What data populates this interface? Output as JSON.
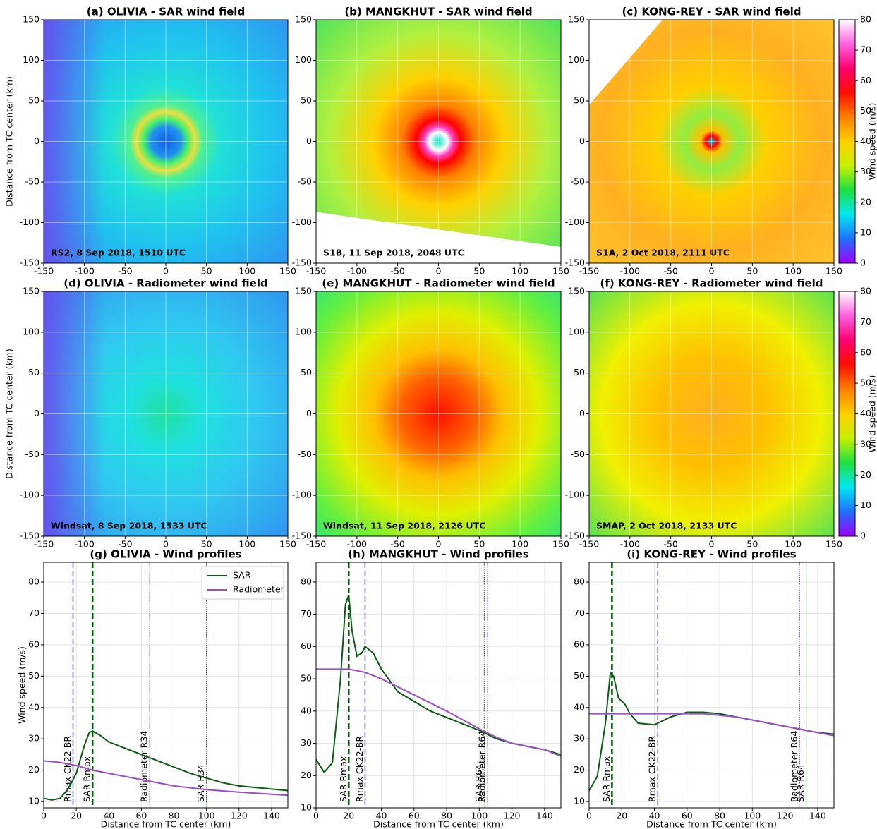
{
  "chart_data": [
    {
      "type": "heatmap",
      "title": "(a) OLIVIA - SAR wind field",
      "annotation": "RS2, 8 Sep 2018, 1510 UTC",
      "annotation_color": "#ffffff",
      "ylabel": "Distance from TC center (km)",
      "xlim": [
        -150,
        150
      ],
      "ylim": [
        -150,
        150
      ],
      "xticks": [
        -150,
        -100,
        -50,
        0,
        50,
        100,
        150
      ],
      "yticks": [
        -150,
        -100,
        -50,
        0,
        50,
        100,
        150
      ],
      "grid": true
    },
    {
      "type": "heatmap",
      "title": "(b) MANGKHUT - SAR wind field",
      "annotation": "S1B, 11 Sep 2018, 2048 UTC",
      "annotation_color": "#000000",
      "xlim": [
        -150,
        150
      ],
      "ylim": [
        -150,
        150
      ],
      "xticks": [
        -150,
        -100,
        -50,
        0,
        50,
        100,
        150
      ],
      "yticks": [
        -150,
        -100,
        -50,
        0,
        50,
        100,
        150
      ],
      "grid": true
    },
    {
      "type": "heatmap",
      "title": "(c) KONG-REY - SAR wind field",
      "annotation": "S1A, 2 Oct 2018, 2111 UTC",
      "annotation_color": "#000000",
      "xlim": [
        -150,
        150
      ],
      "ylim": [
        -150,
        150
      ],
      "xticks": [
        -150,
        -100,
        -50,
        0,
        50,
        100,
        150
      ],
      "yticks": [
        -150,
        -100,
        -50,
        0,
        50,
        100,
        150
      ],
      "grid": true,
      "colorbar": {
        "label": "Wind speed (m/s)",
        "lim": [
          0,
          80
        ],
        "ticks": [
          0,
          10,
          20,
          30,
          40,
          50,
          60,
          70,
          80
        ],
        "colors": [
          "#a000ff",
          "#1f70ff",
          "#00e8f0",
          "#20e040",
          "#c8f000",
          "#ffd000",
          "#ff8000",
          "#ff1000",
          "#ff0070",
          "#ff60e0",
          "#ffffff"
        ]
      }
    },
    {
      "type": "heatmap",
      "title": "(d) OLIVIA - Radiometer wind field",
      "annotation": "Windsat, 8 Sep 2018, 1533 UTC",
      "annotation_color": "#ffffff",
      "ylabel": "Distance from TC center (km)",
      "xlim": [
        -150,
        150
      ],
      "ylim": [
        -150,
        150
      ],
      "xticks": [
        -150,
        -100,
        -50,
        0,
        50,
        100,
        150
      ],
      "yticks": [
        -150,
        -100,
        -50,
        0,
        50,
        100,
        150
      ],
      "grid": true
    },
    {
      "type": "heatmap",
      "title": "(e) MANGKHUT - Radiometer wind field",
      "annotation": "Windsat, 11 Sep 2018, 2126 UTC",
      "annotation_color": "#000000",
      "xlim": [
        -150,
        150
      ],
      "ylim": [
        -150,
        150
      ],
      "xticks": [
        -150,
        -100,
        -50,
        0,
        50,
        100,
        150
      ],
      "yticks": [
        -150,
        -100,
        -50,
        0,
        50,
        100,
        150
      ],
      "grid": true
    },
    {
      "type": "heatmap",
      "title": "(f) KONG-REY - Radiometer wind field",
      "annotation": "SMAP, 2 Oct 2018, 2133 UTC",
      "annotation_color": "#000000",
      "xlim": [
        -150,
        150
      ],
      "ylim": [
        -150,
        150
      ],
      "xticks": [
        -150,
        -100,
        -50,
        0,
        50,
        100,
        150
      ],
      "yticks": [
        -150,
        -100,
        -50,
        0,
        50,
        100,
        150
      ],
      "grid": true,
      "colorbar": {
        "label": "Wind speed (m/s)",
        "lim": [
          0,
          80
        ],
        "ticks": [
          0,
          10,
          20,
          30,
          40,
          50,
          60,
          70,
          80
        ],
        "colors": [
          "#a000ff",
          "#1f70ff",
          "#00e8f0",
          "#20e040",
          "#c8f000",
          "#ffd000",
          "#ff8000",
          "#ff1000",
          "#ff0070",
          "#ff60e0",
          "#ffffff"
        ]
      }
    },
    {
      "type": "line",
      "title": "(g) OLIVIA - Wind profiles",
      "xlabel": "Distance from TC center (km)",
      "ylabel": "Wind speed (m/s)",
      "xlim": [
        0,
        150
      ],
      "ylim": [
        8,
        86.3
      ],
      "xticks": [
        0,
        20,
        40,
        60,
        80,
        100,
        120,
        140
      ],
      "yticks": [
        10,
        20,
        30,
        40,
        50,
        60,
        70,
        80
      ],
      "grid": true,
      "legend": "upper right",
      "series": [
        {
          "name": "SAR",
          "color": "#0b5d12",
          "x": [
            0,
            5,
            10,
            15,
            20,
            25,
            28,
            30,
            35,
            40,
            50,
            60,
            70,
            80,
            90,
            100,
            110,
            120,
            130,
            140,
            150
          ],
          "values": [
            11,
            10.5,
            11,
            14,
            19,
            28,
            32,
            32.5,
            31,
            29,
            27,
            25,
            23,
            21,
            19,
            17.5,
            16,
            15,
            14.5,
            14,
            13.5
          ]
        },
        {
          "name": "Radiometer",
          "color": "#9a4fc9",
          "x": [
            0,
            10,
            20,
            30,
            40,
            60,
            80,
            100,
            120,
            150
          ],
          "values": [
            23,
            22.5,
            21.5,
            20,
            19,
            17,
            15,
            13.8,
            13,
            12
          ]
        }
      ],
      "vlines": [
        {
          "x": 18,
          "label": "Rmax CK22-BR",
          "color": "#9a9ad6",
          "style": "dashed"
        },
        {
          "x": 30,
          "label": "SAR Rmax",
          "color": "#0b5d12",
          "style": "dashed"
        },
        {
          "x": 65,
          "label": "Radiometer R34",
          "color": "#9a4fc9",
          "style": "dotted"
        },
        {
          "x": 100,
          "label": "SAR R34",
          "color": "#0b5d12",
          "style": "dotted"
        }
      ]
    },
    {
      "type": "line",
      "title": "(h) MANGKHUT - Wind profiles",
      "xlabel": "Distance from TC center (km)",
      "xlim": [
        0,
        150
      ],
      "ylim": [
        10,
        86.1
      ],
      "xticks": [
        0,
        20,
        40,
        60,
        80,
        100,
        120,
        140
      ],
      "yticks": [
        10,
        20,
        30,
        40,
        50,
        60,
        70,
        80
      ],
      "grid": true,
      "series": [
        {
          "name": "SAR",
          "color": "#0b5d12",
          "x": [
            0,
            5,
            10,
            15,
            18,
            20,
            22,
            25,
            28,
            30,
            35,
            40,
            50,
            60,
            70,
            80,
            90,
            100,
            110,
            120,
            130,
            140,
            150
          ],
          "values": [
            25,
            21,
            24,
            50,
            73,
            76,
            65,
            57,
            58,
            60,
            58,
            53,
            46,
            43,
            40,
            38,
            36,
            34,
            31.5,
            30,
            29,
            28,
            26.5
          ]
        },
        {
          "name": "Radiometer",
          "color": "#9a4fc9",
          "x": [
            0,
            20,
            30,
            40,
            60,
            80,
            100,
            110,
            120,
            140,
            150
          ],
          "values": [
            53,
            53,
            52,
            50,
            45,
            40,
            34.5,
            32,
            30,
            28,
            26
          ]
        }
      ],
      "vlines": [
        {
          "x": 20,
          "label": "SAR Rmax",
          "color": "#0b5d12",
          "style": "dashed"
        },
        {
          "x": 30,
          "label": "Rmax CK22-BR",
          "color": "#9a9ad6",
          "style": "dashed"
        },
        {
          "x": 103,
          "label": "SAR R64",
          "color": "#0b5d12",
          "style": "dotted"
        },
        {
          "x": 105,
          "label": "Radiometer R64",
          "color": "#9a4fc9",
          "style": "dotted"
        }
      ]
    },
    {
      "type": "line",
      "title": "(i) KONG-REY - Wind profiles",
      "xlabel": "Distance from TC center (km)",
      "xlim": [
        0,
        150
      ],
      "ylim": [
        8,
        86.3
      ],
      "xticks": [
        0,
        20,
        40,
        60,
        80,
        100,
        120,
        140
      ],
      "yticks": [
        10,
        20,
        30,
        40,
        50,
        60,
        70,
        80
      ],
      "grid": true,
      "series": [
        {
          "name": "SAR",
          "color": "#0b5d12",
          "x": [
            0,
            5,
            10,
            13,
            15,
            18,
            22,
            25,
            30,
            40,
            50,
            60,
            70,
            80,
            90,
            100,
            110,
            120,
            130,
            140,
            150
          ],
          "values": [
            13.5,
            18,
            35,
            51,
            50,
            43,
            41,
            38,
            35,
            34.5,
            37,
            38.5,
            38.5,
            38,
            37,
            36,
            35,
            34,
            33,
            32,
            31.5
          ]
        },
        {
          "name": "Radiometer",
          "color": "#9a4fc9",
          "x": [
            0,
            50,
            70,
            90,
            110,
            130,
            150
          ],
          "values": [
            38,
            38,
            38,
            37,
            35,
            33,
            31
          ]
        }
      ],
      "vlines": [
        {
          "x": 14,
          "label": "SAR Rmax",
          "color": "#0b5d12",
          "style": "dashed"
        },
        {
          "x": 42,
          "label": "Rmax CK22-BR",
          "color": "#9a9ad6",
          "style": "dashed"
        },
        {
          "x": 129,
          "label": "Radiometer R64",
          "color": "#9a4fc9",
          "style": "dotted"
        },
        {
          "x": 133,
          "label": "SAR R64",
          "color": "#0b5d12",
          "style": "dotted"
        }
      ]
    }
  ]
}
